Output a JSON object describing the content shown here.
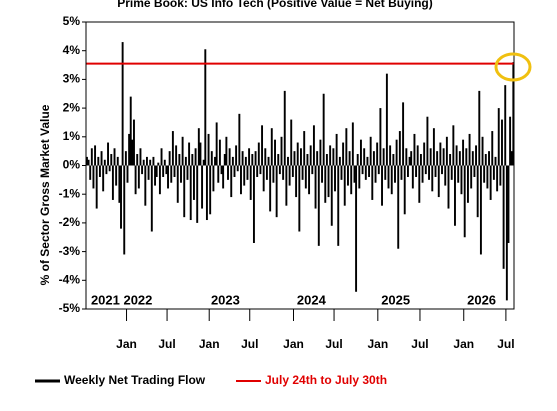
{
  "chart_data": {
    "type": "bar",
    "title": "Prime Book: US Info Tech (Positive Value = Net Buying)",
    "y_label": "% of Sector Gross Market Value",
    "series": [
      {
        "name": "Weekly Net Trading Flow",
        "color": "#000000",
        "values": [
          0.3,
          0.2,
          -0.5,
          0.6,
          -0.8,
          0.7,
          -1.5,
          0.3,
          -0.4,
          0.5,
          -0.9,
          0.2,
          -0.3,
          0.8,
          -0.2,
          0.4,
          -1.2,
          0.6,
          -0.7,
          0.3,
          -1.3,
          -2.2,
          4.3,
          -3.1,
          0.5,
          -0.6,
          1.1,
          2.4,
          0.9,
          1.6,
          -1.0,
          0.4,
          -0.8,
          0.6,
          -0.3,
          0.2,
          -1.4,
          0.3,
          -0.5,
          0.2,
          -2.3,
          0.3,
          -0.7,
          -0.4,
          0.1,
          -1.0,
          0.6,
          -0.4,
          0.2,
          -0.3,
          -0.8,
          0.5,
          -0.6,
          1.2,
          -0.4,
          0.7,
          -1.3,
          0.4,
          -0.6,
          1.0,
          -1.8,
          0.3,
          -0.5,
          0.8,
          -1.9,
          0.4,
          -1.2,
          0.6,
          -2.0,
          1.3,
          0.8,
          -1.5,
          0.2,
          4.05,
          -1.9,
          1.1,
          -1.7,
          0.5,
          -0.9,
          0.3,
          1.5,
          -0.6,
          0.9,
          -0.3,
          -0.8,
          0.4,
          1.0,
          -0.5,
          0.6,
          -1.1,
          0.3,
          -0.4,
          0.7,
          -0.2,
          1.8,
          -1.0,
          0.5,
          -0.7,
          0.3,
          -0.5,
          0.6,
          -1.2,
          0.4,
          -2.7,
          0.5,
          -0.4,
          0.8,
          -0.3,
          1.4,
          -0.9,
          0.6,
          -0.5,
          0.3,
          -1.6,
          1.3,
          -0.6,
          0.9,
          -1.8,
          0.4,
          -0.3,
          1.0,
          -0.5,
          2.6,
          -1.4,
          0.3,
          -0.7,
          1.6,
          -0.4,
          0.5,
          -1.1,
          0.8,
          -2.3,
          0.6,
          -0.5,
          1.2,
          -0.8,
          0.4,
          -1.0,
          0.7,
          -0.3,
          1.4,
          -1.5,
          0.5,
          -2.8,
          0.9,
          -0.6,
          2.5,
          -1.3,
          0.4,
          -1.1,
          0.7,
          -2.1,
          0.6,
          -0.9,
          1.1,
          -2.8,
          0.3,
          -0.5,
          0.8,
          -1.4,
          1.3,
          -0.7,
          0.5,
          -1.0,
          1.5,
          -0.6,
          -4.4,
          0.4,
          -0.8,
          0.9,
          -0.3,
          0.6,
          -0.5,
          0.3,
          -0.4,
          1.0,
          -1.2,
          0.5,
          -0.6,
          0.8,
          -0.3,
          2.0,
          -1.4,
          0.6,
          -0.5,
          3.2,
          -0.8,
          0.7,
          -1.0,
          0.4,
          -0.6,
          0.9,
          -2.9,
          1.2,
          -0.5,
          2.2,
          -1.7,
          0.6,
          -0.4,
          0.3,
          0.5,
          -0.8,
          1.1,
          -0.4,
          0.7,
          -1.3,
          0.4,
          -0.6,
          0.8,
          -0.3,
          1.7,
          -0.5,
          0.6,
          -0.9,
          1.3,
          -0.4,
          0.5,
          -1.1,
          0.8,
          -0.3,
          0.6,
          -0.7,
          1.0,
          -1.5,
          0.4,
          -0.5,
          1.4,
          -2.1,
          0.7,
          -0.6,
          0.5,
          -1.0,
          0.9,
          -2.5,
          0.6,
          -1.3,
          1.1,
          -0.8,
          0.5,
          -0.4,
          0.7,
          -1.8,
          2.6,
          -3.1,
          1.0,
          -0.6,
          0.4,
          -0.8,
          0.5,
          -1.2,
          1.2,
          -0.5,
          0.3,
          -0.9,
          2.0,
          -0.7,
          1.6,
          -3.6,
          2.8,
          -4.7,
          -2.7,
          1.7,
          0.5,
          3.6
        ]
      }
    ],
    "reference_line": {
      "name": "July 24th to July 30th",
      "value": 3.55,
      "color": "#e00000"
    },
    "xlim": [
      0,
      264
    ],
    "xticks": [
      {
        "value": 25,
        "label": "Jan"
      },
      {
        "value": 50,
        "label": "Jul"
      },
      {
        "value": 76,
        "label": "Jan"
      },
      {
        "value": 101,
        "label": "Jul"
      },
      {
        "value": 128,
        "label": "Jan"
      },
      {
        "value": 153,
        "label": "Jul"
      },
      {
        "value": 180,
        "label": "Jan"
      },
      {
        "value": 206,
        "label": "Jul"
      },
      {
        "value": 233,
        "label": "Jan"
      },
      {
        "value": 259,
        "label": "Jul"
      }
    ],
    "year_labels": [
      {
        "value": 22,
        "label": "2021 2022"
      },
      {
        "value": 86,
        "label": "2023"
      },
      {
        "value": 139,
        "label": "2024"
      },
      {
        "value": 191,
        "label": "2025"
      },
      {
        "value": 244,
        "label": "2026"
      }
    ],
    "ylim": [
      -5,
      5
    ],
    "yticks": [
      {
        "value": -5,
        "label": "-5%"
      },
      {
        "value": -4,
        "label": "-4%"
      },
      {
        "value": -3,
        "label": "-3%"
      },
      {
        "value": -2,
        "label": "-2%"
      },
      {
        "value": -1,
        "label": "-1%"
      },
      {
        "value": 0,
        "label": "0%"
      },
      {
        "value": 1,
        "label": "1%"
      },
      {
        "value": 2,
        "label": "2%"
      },
      {
        "value": 3,
        "label": "3%"
      },
      {
        "value": 4,
        "label": "4%"
      },
      {
        "value": 5,
        "label": "5%"
      }
    ]
  }
}
